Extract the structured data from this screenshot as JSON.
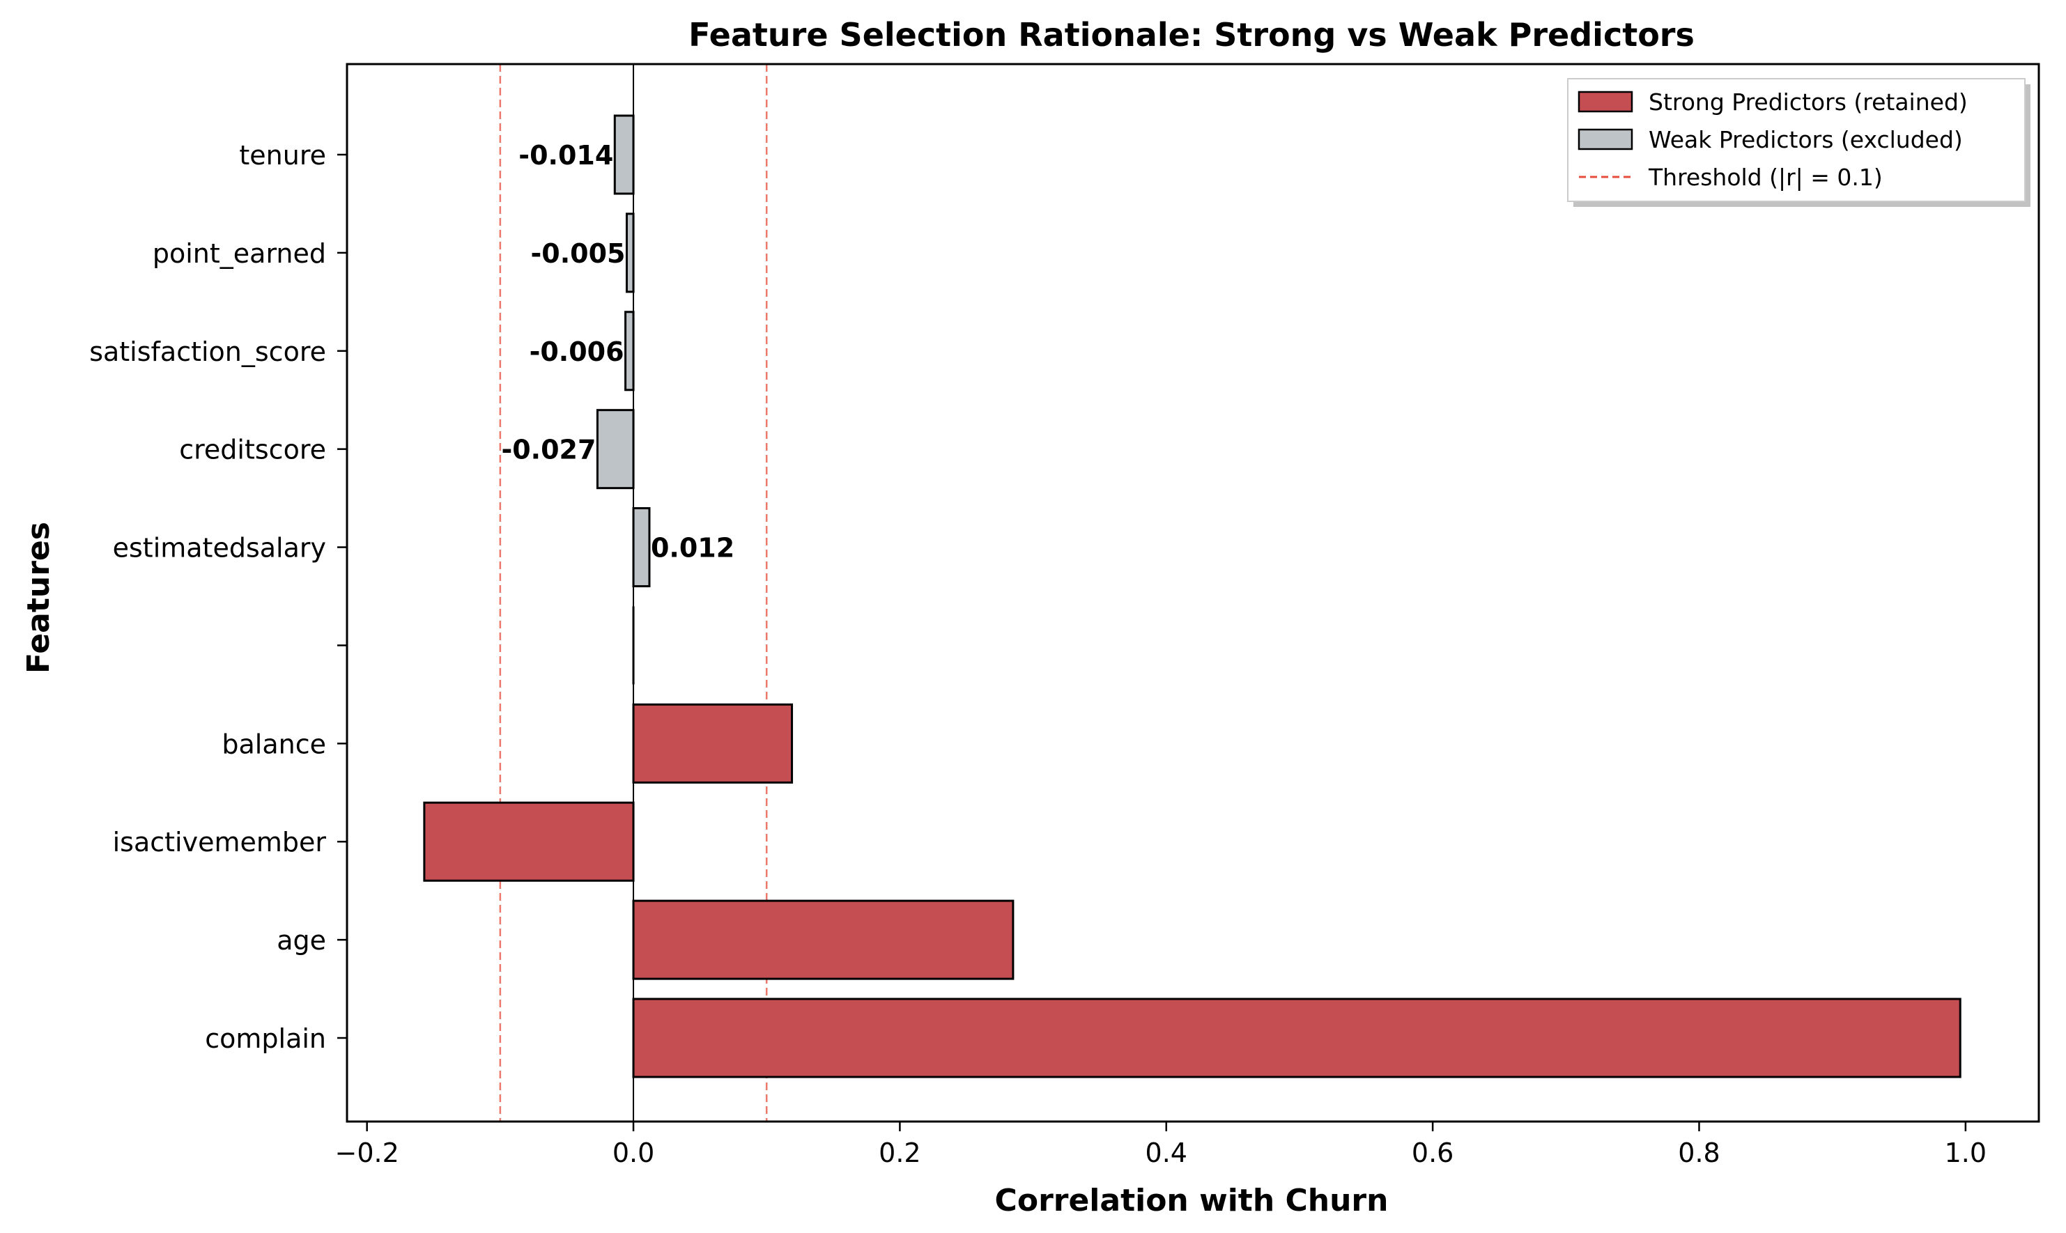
{
  "chart_data": {
    "type": "bar",
    "orientation": "horizontal",
    "title": "Feature Selection Rationale: Strong vs Weak Predictors",
    "xlabel": "Correlation with Churn",
    "ylabel": "Features",
    "xlim": [
      -0.215,
      1.055
    ],
    "xticks": [
      -0.2,
      0.0,
      0.2,
      0.4,
      0.6,
      0.8,
      1.0
    ],
    "xtick_labels": [
      "−0.2",
      "0.0",
      "0.2",
      "0.4",
      "0.6",
      "0.8",
      "1.0"
    ],
    "threshold": 0.1,
    "grid": false,
    "legend_position": "top-right",
    "categories": [
      "complain",
      "age",
      "isactivemember",
      "balance",
      "",
      "estimatedsalary",
      "creditscore",
      "satisfaction_score",
      "point_earned",
      "tenure"
    ],
    "series": [
      {
        "name": "Strong Predictors (retained)",
        "color": "#c44e52",
        "values": [
          0.996,
          0.285,
          -0.157,
          0.119,
          null,
          null,
          null,
          null,
          null,
          null
        ]
      },
      {
        "name": "Weak Predictors (excluded)",
        "color": "#bdc3c7",
        "values": [
          null,
          null,
          null,
          null,
          null,
          0.012,
          -0.027,
          -0.006,
          -0.005,
          -0.014
        ],
        "data_labels": [
          null,
          null,
          null,
          null,
          null,
          "0.012",
          "-0.027",
          "-0.006",
          "-0.005",
          "-0.014"
        ]
      }
    ],
    "reference_lines": [
      {
        "name": "Threshold (|r| = 0.1)",
        "color": "#e74c3c",
        "values": [
          -0.1,
          0.1
        ],
        "style": "dashed"
      }
    ]
  }
}
